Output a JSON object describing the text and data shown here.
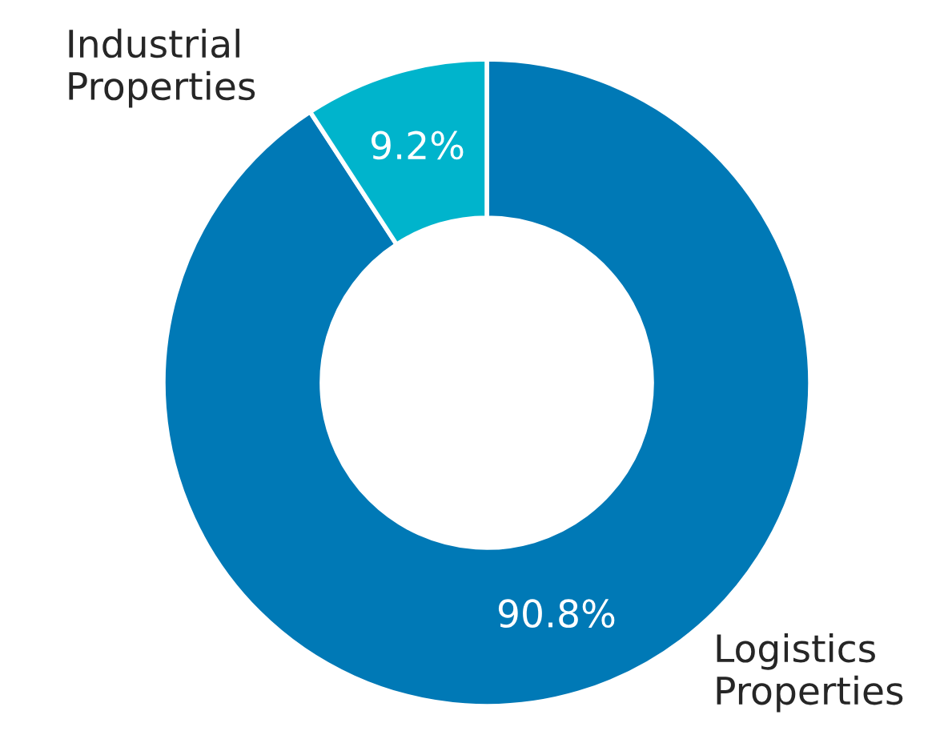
{
  "chart_data": {
    "type": "donut",
    "categories": [
      "Logistics\nProperties",
      "Industrial\nProperties"
    ],
    "values": [
      90.8,
      9.2
    ],
    "colors": [
      "#0079b6",
      "#00b4cc"
    ],
    "value_labels": [
      "90.8%",
      "9.2%"
    ]
  }
}
